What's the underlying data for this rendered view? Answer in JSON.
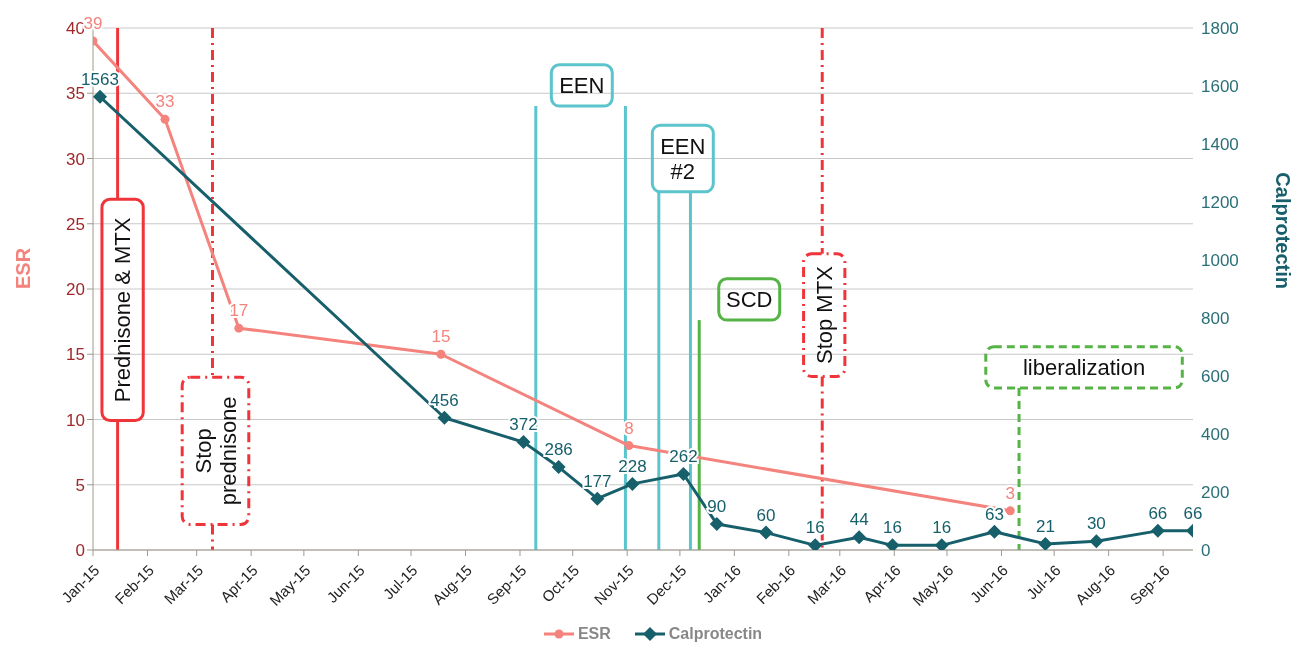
{
  "chart_data": {
    "type": "line",
    "ylabel": "ESR",
    "y2label": "Calprotectin",
    "xlim": [
      "2015-01-01",
      "2016-09-18"
    ],
    "xticks": [
      {
        "value": "2015-01-01",
        "label": "Jan-15"
      },
      {
        "value": "2015-02-01",
        "label": "Feb-15"
      },
      {
        "value": "2015-03-01",
        "label": "Mar-15"
      },
      {
        "value": "2015-04-01",
        "label": "Apr-15"
      },
      {
        "value": "2015-05-01",
        "label": "May-15"
      },
      {
        "value": "2015-06-01",
        "label": "Jun-15"
      },
      {
        "value": "2015-07-01",
        "label": "Jul-15"
      },
      {
        "value": "2015-08-01",
        "label": "Aug-15"
      },
      {
        "value": "2015-09-01",
        "label": "Sep-15"
      },
      {
        "value": "2015-10-01",
        "label": "Oct-15"
      },
      {
        "value": "2015-11-01",
        "label": "Nov-15"
      },
      {
        "value": "2015-12-01",
        "label": "Dec-15"
      },
      {
        "value": "2016-01-01",
        "label": "Jan-16"
      },
      {
        "value": "2016-02-01",
        "label": "Feb-16"
      },
      {
        "value": "2016-03-01",
        "label": "Mar-16"
      },
      {
        "value": "2016-04-01",
        "label": "Apr-16"
      },
      {
        "value": "2016-05-01",
        "label": "May-16"
      },
      {
        "value": "2016-06-01",
        "label": "Jun-16"
      },
      {
        "value": "2016-07-01",
        "label": "Jul-16"
      },
      {
        "value": "2016-08-01",
        "label": "Aug-16"
      },
      {
        "value": "2016-09-01",
        "label": "Sep-16"
      }
    ],
    "ylim": [
      0,
      40
    ],
    "yticks": [
      0,
      5,
      10,
      15,
      20,
      25,
      30,
      35,
      40
    ],
    "y2lim": [
      0,
      1800
    ],
    "y2ticks": [
      0,
      200,
      400,
      600,
      800,
      1000,
      1200,
      1400,
      1600,
      1800
    ],
    "grid": "y",
    "legend": "bottom",
    "data_labels": true,
    "line_style": "solid",
    "series": [
      {
        "name": "ESR",
        "color": "#f4837d",
        "marker": "circle",
        "x": [
          "2015-01-01",
          "2015-02-11",
          "2015-03-25",
          "2015-07-18",
          "2015-11-02",
          "2016-06-06"
        ],
        "values": [
          39,
          33,
          17,
          15,
          8,
          3
        ]
      },
      {
        "name": "Calprotectin",
        "color": "#17606b",
        "marker": "diamond",
        "axis": "y2",
        "x": [
          "2015-01-05",
          "2015-07-20",
          "2015-09-03",
          "2015-09-23",
          "2015-10-15",
          "2015-11-04",
          "2015-12-03",
          "2015-12-22",
          "2016-01-19",
          "2016-02-16",
          "2016-03-12",
          "2016-03-31",
          "2016-04-28",
          "2016-05-28",
          "2016-06-26",
          "2016-07-25",
          "2016-08-29",
          "2016-09-18"
        ],
        "values": [
          1563,
          456,
          372,
          286,
          177,
          228,
          262,
          90,
          60,
          16,
          44,
          16,
          16,
          63,
          21,
          30,
          66,
          66
        ]
      }
    ],
    "ref_lines": [
      {
        "axis": "x",
        "value": "2015-01-15",
        "label": "Prednisone & MTX",
        "color": "#f0353a",
        "line_style": "solid"
      },
      {
        "axis": "x",
        "value": "2015-03-10",
        "label": "Stop prednisone",
        "color": "#f0353a",
        "line_style": "dashdot"
      },
      {
        "axis": "x",
        "value": "2015-09-10",
        "label": "EEN",
        "color": "#5bc4cc",
        "line_style": "solid"
      },
      {
        "axis": "x",
        "value": "2015-10-31",
        "color": "#5bc4cc",
        "line_style": "solid"
      },
      {
        "axis": "x",
        "value": "2015-11-19",
        "label": "EEN #2",
        "color": "#5bc4cc",
        "line_style": "solid"
      },
      {
        "axis": "x",
        "value": "2015-12-07",
        "color": "#5bc4cc",
        "line_style": "solid"
      },
      {
        "axis": "x",
        "value": "2015-12-12",
        "label": "SCD",
        "color": "#56b346",
        "line_style": "solid"
      },
      {
        "axis": "x",
        "value": "2016-02-20",
        "label": "Stop MTX",
        "color": "#f0353a",
        "line_style": "dashdot"
      },
      {
        "axis": "x",
        "value": "2016-06-11",
        "label": "liberalization",
        "color": "#56b346",
        "line_style": "dashed"
      }
    ]
  }
}
